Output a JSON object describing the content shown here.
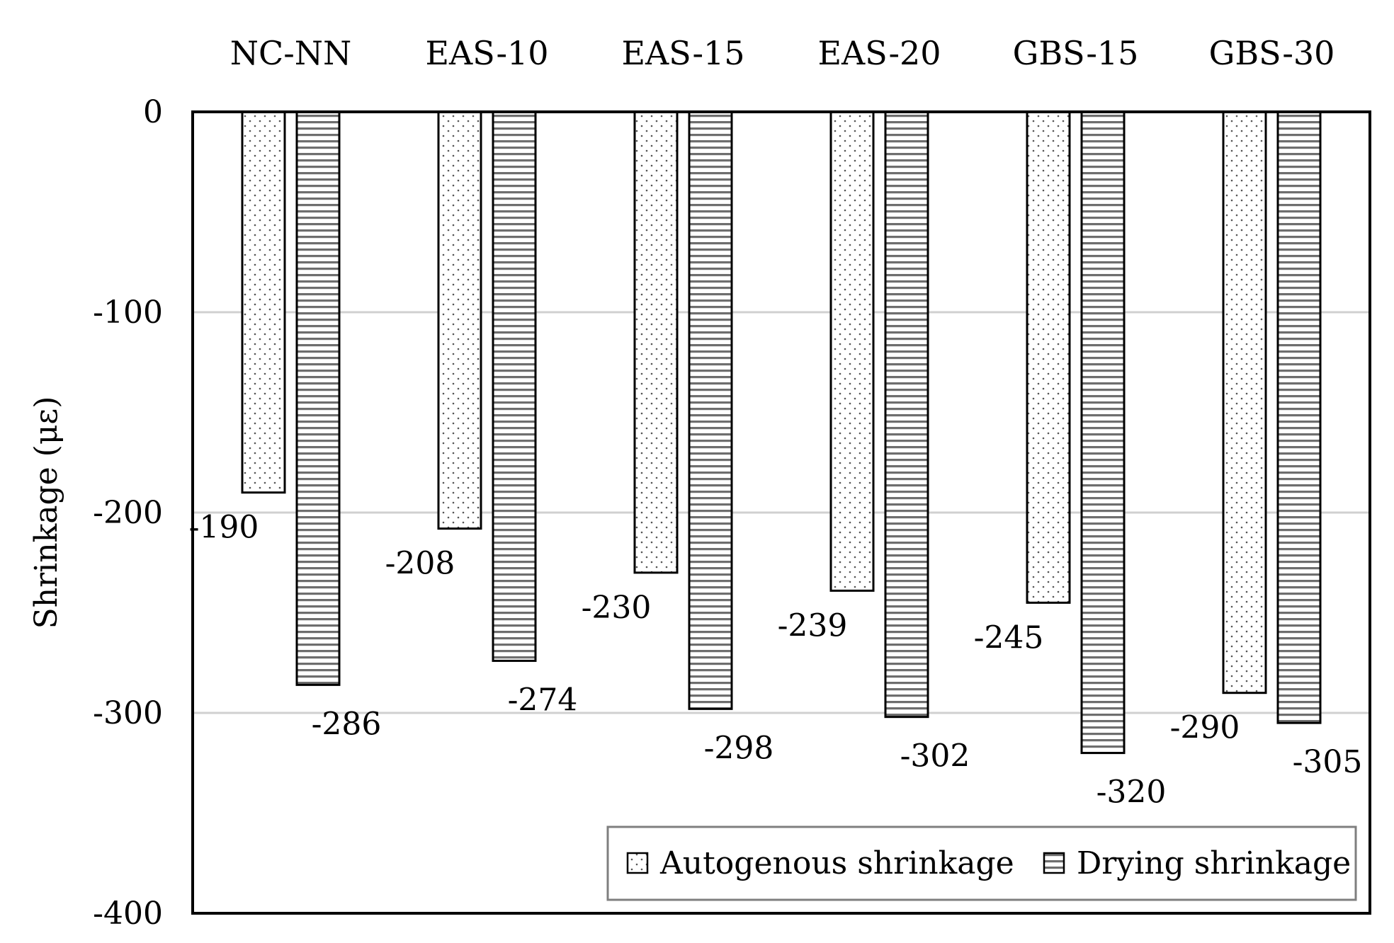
{
  "chart_data": {
    "type": "bar",
    "categories": [
      "NC-NN",
      "EAS-10",
      "EAS-15",
      "EAS-20",
      "GBS-15",
      "GBS-30"
    ],
    "series": [
      {
        "name": "Autogenous shrinkage",
        "values": [
          -190,
          -208,
          -230,
          -239,
          -245,
          -290
        ],
        "pattern": "dots"
      },
      {
        "name": "Drying shrinkage",
        "values": [
          -286,
          -274,
          -298,
          -302,
          -320,
          -305
        ],
        "pattern": "horizontal-stripes"
      }
    ],
    "data_labels": [
      [
        "-190",
        "-208",
        "-230",
        "-239",
        "-245",
        "-290"
      ],
      [
        "-286",
        "-274",
        "-298",
        "-302",
        "-320",
        "-305"
      ]
    ],
    "ylabel": "Shrinkage (με)",
    "ylim": [
      -400,
      0
    ],
    "yticks": [
      0,
      -100,
      -200,
      -300,
      -400
    ],
    "ytick_labels": [
      "0",
      "-100",
      "-200",
      "-300",
      "-400"
    ],
    "category_axis_position": "top",
    "grid": true,
    "legend_position": "bottom-right",
    "colors": {
      "bar_fill": "#ffffff",
      "bar_stroke": "#000000",
      "grid": "#d0d0d0",
      "legend_border": "#7f7f7f"
    }
  }
}
